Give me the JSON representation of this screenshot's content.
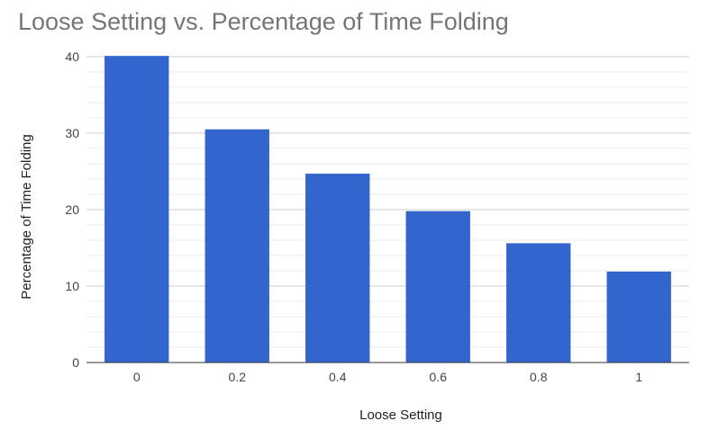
{
  "chart_data": {
    "type": "bar",
    "title": "Loose Setting vs. Percentage of Time Folding",
    "xlabel": "Loose Setting",
    "ylabel": "Percentage of Time Folding",
    "categories": [
      "0",
      "0.2",
      "0.4",
      "0.6",
      "0.8",
      "1"
    ],
    "series": [
      {
        "values": [
          40.1,
          30.5,
          24.7,
          19.8,
          15.6,
          11.9
        ]
      }
    ],
    "ylim": [
      0,
      40
    ],
    "yticks": [
      0,
      10,
      20,
      30,
      40
    ],
    "minor_grid_step": 2,
    "grid": true,
    "legend": "none",
    "colors": {
      "bar": "#3366cc",
      "major_grid": "#cccccc",
      "minor_grid": "#ebebeb",
      "baseline": "#333333"
    }
  }
}
